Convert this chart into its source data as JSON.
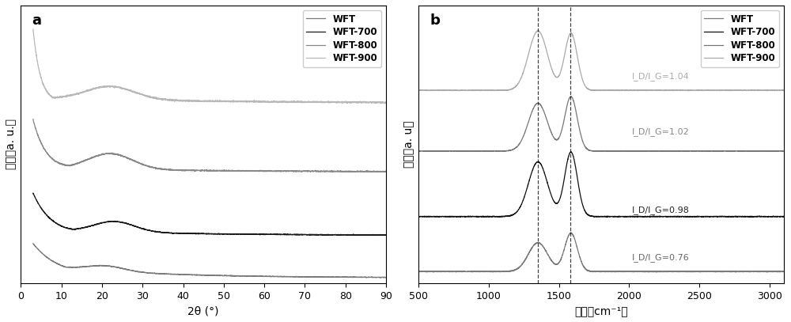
{
  "panel_a": {
    "xlabel": "2θ (°)",
    "ylabel": "强度（a. u.）",
    "xlim": [
      0,
      90
    ],
    "xticks": [
      0,
      10,
      20,
      30,
      40,
      50,
      60,
      70,
      80,
      90
    ],
    "label": "a",
    "legend": [
      "WFT",
      "WFT-700",
      "WFT-800",
      "WFT-900"
    ],
    "colors_plot": [
      "#7a7a7a",
      "#1a1a1a",
      "#888888",
      "#b8b8b8"
    ],
    "offsets": [
      0.02,
      0.18,
      0.42,
      0.68
    ]
  },
  "panel_b": {
    "xlabel": "波数（cm⁻¹）",
    "ylabel": "强度（a. u）",
    "xlim": [
      500,
      3100
    ],
    "xticks": [
      500,
      1000,
      1500,
      2000,
      2500,
      3000
    ],
    "label": "b",
    "legend": [
      "WFT",
      "WFT-700",
      "WFT-800",
      "WFT-900"
    ],
    "colors_plot": [
      "#7a7a7a",
      "#111111",
      "#777777",
      "#aaaaaa"
    ],
    "dashed_lines": [
      1350,
      1580
    ],
    "annotations": [
      "I_D/I_G=1.04",
      "I_D/I_G=1.02",
      "I_D/I_G=0.98",
      "I_D/I_G=0.76"
    ],
    "ann_colors": [
      "#aaaaaa",
      "#888888",
      "#222222",
      "#666666"
    ],
    "offsets": [
      0.04,
      0.26,
      0.52,
      0.76
    ]
  },
  "background_color": "#ffffff",
  "figure_facecolor": "#ffffff"
}
